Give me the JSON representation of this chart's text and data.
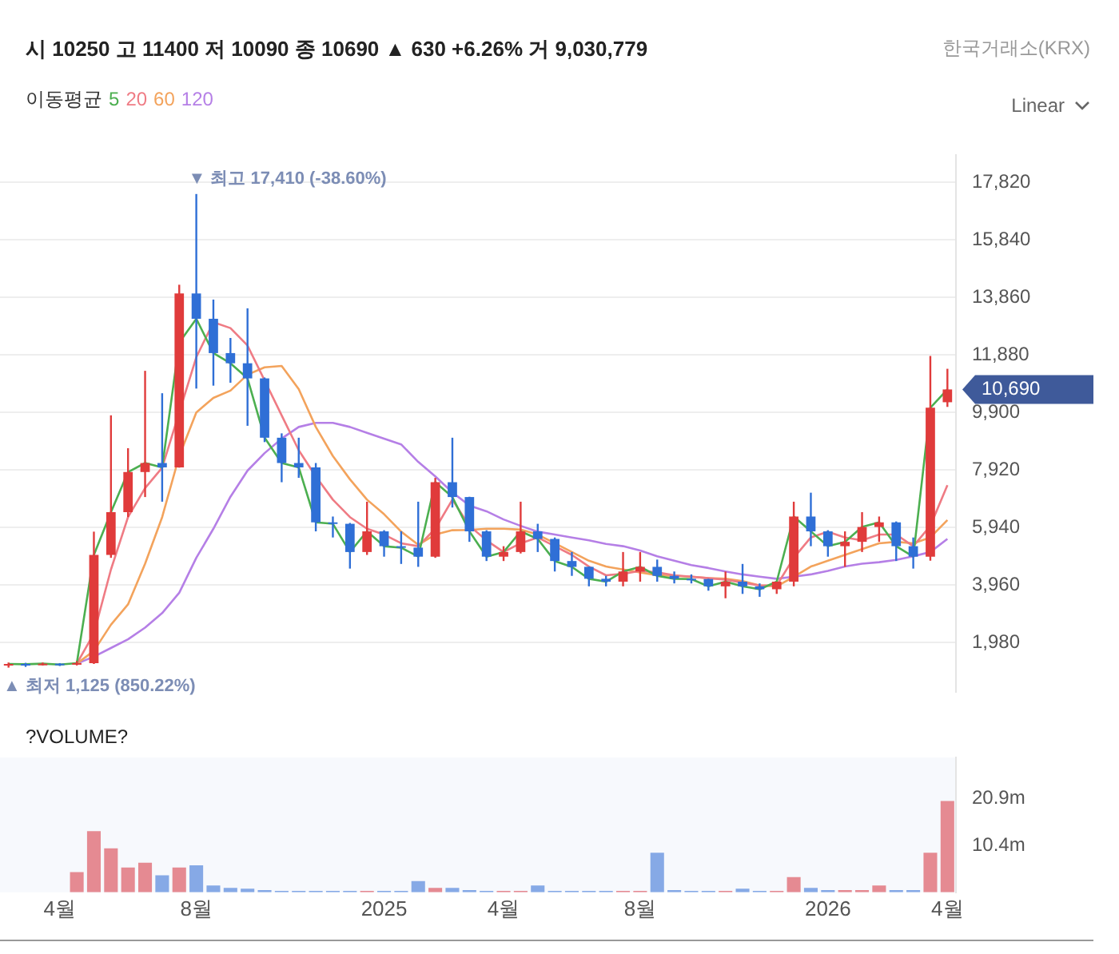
{
  "chart_data": [
    {
      "type": "candlestick",
      "subtitle": "시 10250 고 11400 저 10090 종 10690 ▲ 630 +6.26% 거 9,030,779",
      "legend_title": "이동평균",
      "legend": "top left",
      "grid": "y",
      "tick_labels": "y",
      "categories": [
        null,
        null,
        null,
        null,
        null,
        null,
        null,
        null,
        null,
        null,
        null,
        null,
        null,
        null,
        null,
        null,
        null,
        null,
        null,
        null,
        null,
        null,
        null,
        null,
        null,
        null,
        null,
        null,
        null,
        null,
        null,
        null,
        null,
        null,
        null,
        null,
        null,
        null,
        null,
        null,
        null,
        null,
        null,
        null,
        null,
        null,
        null,
        null,
        null,
        null,
        null,
        null,
        null,
        null,
        null,
        null
      ],
      "ohlc": [
        [
          1240,
          1300,
          1125,
          1250
        ],
        [
          1250,
          1290,
          1150,
          1240
        ],
        [
          1240,
          1300,
          1200,
          1260
        ],
        [
          1260,
          1280,
          1180,
          1230
        ],
        [
          1230,
          1350,
          1200,
          1280
        ],
        [
          1280,
          5800,
          1250,
          5000
        ],
        [
          5000,
          9800,
          4900,
          6470
        ],
        [
          6470,
          8670,
          6300,
          7850
        ],
        [
          7850,
          11330,
          6990,
          8160
        ],
        [
          8160,
          10560,
          6830,
          8010
        ],
        [
          8010,
          14290,
          8000,
          13990
        ],
        [
          13990,
          17410,
          10720,
          13120
        ],
        [
          13120,
          13780,
          10820,
          11940
        ],
        [
          11940,
          12460,
          10920,
          11590
        ],
        [
          11590,
          13480,
          9440,
          11070
        ],
        [
          11070,
          11100,
          8880,
          9030
        ],
        [
          9030,
          9180,
          7500,
          8160
        ],
        [
          8160,
          9030,
          7650,
          8010
        ],
        [
          8010,
          8160,
          5810,
          6120
        ],
        [
          6120,
          6320,
          5600,
          6070
        ],
        [
          6070,
          6100,
          4530,
          5100
        ],
        [
          5100,
          6830,
          5000,
          5810
        ],
        [
          5810,
          5850,
          4940,
          5300
        ],
        [
          5300,
          5810,
          4690,
          5250
        ],
        [
          5250,
          6830,
          4590,
          4940
        ],
        [
          4940,
          7650,
          4900,
          7500
        ],
        [
          7500,
          9030,
          6630,
          6990
        ],
        [
          6990,
          7000,
          5450,
          5810
        ],
        [
          5810,
          5850,
          4790,
          4940
        ],
        [
          4940,
          5300,
          4790,
          5100
        ],
        [
          5100,
          6830,
          5050,
          5810
        ],
        [
          5810,
          6070,
          5100,
          5550
        ],
        [
          5550,
          5600,
          4430,
          4790
        ],
        [
          4790,
          5100,
          4280,
          4590
        ],
        [
          4590,
          4600,
          3920,
          4180
        ],
        [
          4180,
          4280,
          3920,
          4080
        ],
        [
          4080,
          5100,
          3920,
          4430
        ],
        [
          4430,
          5100,
          4080,
          4590
        ],
        [
          4590,
          4840,
          4080,
          4280
        ],
        [
          4280,
          4430,
          4020,
          4180
        ],
        [
          4180,
          4330,
          4020,
          4170
        ],
        [
          4170,
          4180,
          3770,
          3920
        ],
        [
          3920,
          4430,
          3510,
          4080
        ],
        [
          4080,
          4690,
          3660,
          3920
        ],
        [
          3920,
          4020,
          3560,
          3820
        ],
        [
          3820,
          4080,
          3660,
          4080
        ],
        [
          4080,
          6830,
          3920,
          6320
        ],
        [
          6320,
          7140,
          5300,
          5810
        ],
        [
          5810,
          5850,
          4940,
          5300
        ],
        [
          5300,
          5810,
          4590,
          5450
        ],
        [
          5450,
          6470,
          5100,
          5960
        ],
        [
          5960,
          6320,
          5450,
          6120
        ],
        [
          6120,
          6150,
          4790,
          5300
        ],
        [
          5300,
          5600,
          4530,
          4940
        ],
        [
          4940,
          11840,
          4800,
          10060
        ],
        [
          10250,
          11400,
          10090,
          10690
        ]
      ],
      "series": [
        {
          "name": "5",
          "color": "#4caf50",
          "type": "line",
          "values": [
            1250,
            1240,
            1260,
            1230,
            1280,
            5000,
            6470,
            7850,
            8160,
            8010,
            12300,
            13120,
            11940,
            11590,
            11070,
            9030,
            8160,
            8010,
            6120,
            6070,
            5100,
            5810,
            5300,
            5250,
            4940,
            7500,
            6990,
            5810,
            4940,
            5100,
            5810,
            5550,
            4790,
            4590,
            4180,
            4080,
            4430,
            4590,
            4280,
            4180,
            4170,
            3920,
            4080,
            3920,
            3820,
            4080,
            6320,
            5810,
            5300,
            5450,
            5960,
            6120,
            5300,
            4940,
            10060,
            10690
          ]
        },
        {
          "name": "20",
          "color": "#ef7b84",
          "type": "line",
          "values": [
            null,
            null,
            null,
            null,
            1260,
            2300,
            4500,
            6300,
            7300,
            8000,
            9900,
            11800,
            13000,
            12800,
            12200,
            11000,
            9800,
            8600,
            7700,
            6900,
            6300,
            5900,
            5700,
            5400,
            5300,
            5900,
            6900,
            6000,
            5500,
            5100,
            5400,
            5600,
            5300,
            5000,
            4600,
            4300,
            4350,
            4450,
            4400,
            4300,
            4250,
            4200,
            4150,
            4050,
            3950,
            3950,
            4900,
            5600,
            5800,
            5600,
            5500,
            5700,
            5700,
            5300,
            6000,
            7400
          ]
        },
        {
          "name": "60",
          "color": "#f3a35c",
          "type": "line",
          "values": [
            null,
            null,
            null,
            null,
            1260,
            1700,
            2600,
            3300,
            4700,
            6300,
            8400,
            9900,
            10400,
            10650,
            11200,
            11450,
            11500,
            10700,
            9400,
            8400,
            7600,
            6900,
            6400,
            5800,
            5350,
            5700,
            5850,
            5860,
            5900,
            5900,
            5870,
            5700,
            5400,
            5100,
            4800,
            4600,
            4500,
            4400,
            4300,
            4280,
            4250,
            4200,
            4180,
            4100,
            3950,
            3920,
            4250,
            4600,
            4800,
            5000,
            5200,
            5400,
            5450,
            5400,
            5600,
            6200
          ]
        },
        {
          "name": "120",
          "color": "#b57fe6",
          "type": "line",
          "values": [
            null,
            null,
            null,
            null,
            1260,
            1500,
            1800,
            2100,
            2500,
            3000,
            3700,
            4900,
            5900,
            7000,
            7900,
            8500,
            9000,
            9400,
            9540,
            9540,
            9400,
            9200,
            9000,
            8800,
            8200,
            7700,
            7150,
            6700,
            6500,
            6220,
            6000,
            5800,
            5700,
            5600,
            5500,
            5380,
            5300,
            5150,
            4950,
            4800,
            4650,
            4550,
            4430,
            4330,
            4250,
            4180,
            4250,
            4330,
            4450,
            4600,
            4700,
            4750,
            4830,
            4950,
            5100,
            5550
          ]
        }
      ],
      "ylim": [
        300,
        18740
      ],
      "yticks": [
        {
          "value": 1980,
          "label": "1,980"
        },
        {
          "value": 3960,
          "label": "3,960"
        },
        {
          "value": 5940,
          "label": "5,940"
        },
        {
          "value": 7920,
          "label": "7,920"
        },
        {
          "value": 9900,
          "label": "9,900"
        },
        {
          "value": 11880,
          "label": "11,880"
        },
        {
          "value": 13860,
          "label": "13,860"
        },
        {
          "value": 15840,
          "label": "15,840"
        },
        {
          "value": 17820,
          "label": "17,820"
        }
      ],
      "annotations": [
        "한국거래소(KRX)",
        "Linear",
        "▼ 최고 17,410 (-38.60%)",
        "▲ 최저 1,125 (850.22%)",
        "10,690"
      ]
    },
    {
      "type": "bar",
      "title": "?VOLUME?",
      "categories": [
        null,
        null,
        null,
        "4월",
        null,
        null,
        null,
        null,
        null,
        null,
        null,
        "8월",
        null,
        null,
        null,
        null,
        null,
        null,
        null,
        null,
        null,
        null,
        "2025",
        null,
        null,
        null,
        null,
        null,
        null,
        "4월",
        null,
        null,
        null,
        null,
        null,
        null,
        null,
        "8월",
        null,
        null,
        null,
        null,
        null,
        null,
        null,
        null,
        null,
        null,
        "2026",
        null,
        null,
        null,
        null,
        null,
        null,
        "4월"
      ],
      "values": [
        null,
        null,
        null,
        null,
        4500000,
        13600000,
        9800000,
        5500000,
        6600000,
        3800000,
        5500000,
        6000000,
        1500000,
        1000000,
        800000,
        500000,
        300000,
        300000,
        300000,
        300000,
        300000,
        300000,
        300000,
        300000,
        2500000,
        1000000,
        1000000,
        500000,
        300000,
        300000,
        300000,
        1500000,
        300000,
        300000,
        300000,
        300000,
        300000,
        300000,
        8800000,
        500000,
        300000,
        300000,
        300000,
        800000,
        300000,
        300000,
        3400000,
        1000000,
        500000,
        500000,
        500000,
        1500000,
        500000,
        500000,
        8800000,
        20300000
      ],
      "colors": [
        "#e58a92",
        "#86a9e6",
        "#e58a92",
        "#86a9e6",
        "#e58a92",
        "#e58a92",
        "#e58a92",
        "#e58a92",
        "#e58a92",
        "#86a9e6",
        "#e58a92",
        "#86a9e6",
        "#86a9e6",
        "#86a9e6",
        "#86a9e6",
        "#86a9e6",
        "#86a9e6",
        "#86a9e6",
        "#86a9e6",
        "#86a9e6",
        "#86a9e6",
        "#e58a92",
        "#86a9e6",
        "#86a9e6",
        "#86a9e6",
        "#e58a92",
        "#86a9e6",
        "#86a9e6",
        "#86a9e6",
        "#e58a92",
        "#e58a92",
        "#86a9e6",
        "#86a9e6",
        "#86a9e6",
        "#86a9e6",
        "#86a9e6",
        "#e58a92",
        "#e58a92",
        "#86a9e6",
        "#86a9e6",
        "#86a9e6",
        "#86a9e6",
        "#e58a92",
        "#86a9e6",
        "#86a9e6",
        "#e58a92",
        "#e58a92",
        "#86a9e6",
        "#86a9e6",
        "#e58a92",
        "#e58a92",
        "#e58a92",
        "#86a9e6",
        "#86a9e6",
        "#e58a92",
        "#e58a92"
      ],
      "ylim": [
        0,
        30000000
      ],
      "yticks": [
        {
          "value": 10400000,
          "label": "10.4m"
        },
        {
          "value": 20900000,
          "label": "20.9m"
        }
      ]
    }
  ]
}
